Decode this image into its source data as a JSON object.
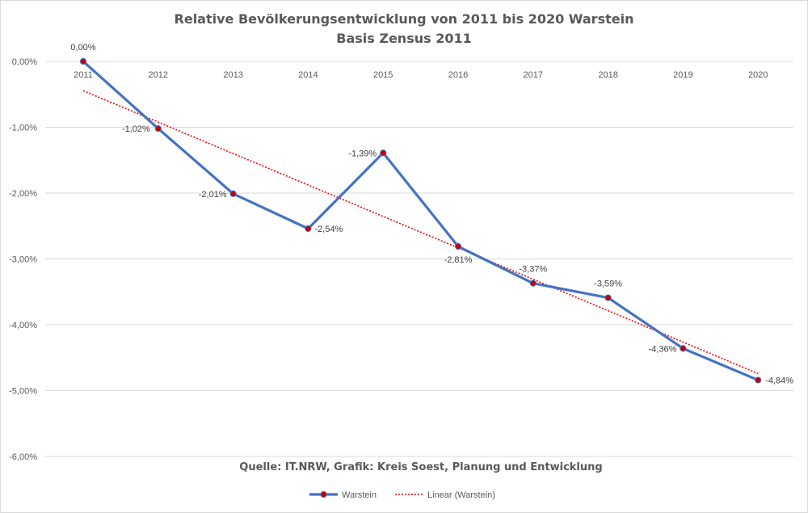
{
  "chart_data": {
    "type": "line",
    "title": "Relative Bevölkerungsentwicklung von 2011 bis 2020 Warstein",
    "subtitle": "Basis Zensus 2011",
    "source": "Quelle: IT.NRW, Grafik: Kreis Soest, Planung und Entwicklung",
    "categories": [
      "2011",
      "2012",
      "2013",
      "2014",
      "2015",
      "2016",
      "2017",
      "2018",
      "2019",
      "2020"
    ],
    "y_ticks": [
      "0,00%",
      "-1,00%",
      "-2,00%",
      "-3,00%",
      "-4,00%",
      "-5,00%",
      "-6,00%"
    ],
    "ylim": [
      -6,
      0
    ],
    "grid": true,
    "legend_position": "bottom",
    "series": [
      {
        "name": "Warstein",
        "values": [
          0,
          -1.02,
          -2.01,
          -2.54,
          -1.39,
          -2.81,
          -3.37,
          -3.59,
          -4.36,
          -4.84
        ],
        "labels": [
          "0,00%",
          "-1,02%",
          "-2,01%",
          "-2,54%",
          "-1,39%",
          "-2,81%",
          "-3,37%",
          "-3,59%",
          "-4,36%",
          "-4,84%"
        ],
        "color": "#4472c4",
        "marker_color": "#c00000"
      }
    ],
    "trendline": {
      "name": "Linear (Warstein)",
      "type": "linear",
      "color": "#ff0000"
    }
  }
}
